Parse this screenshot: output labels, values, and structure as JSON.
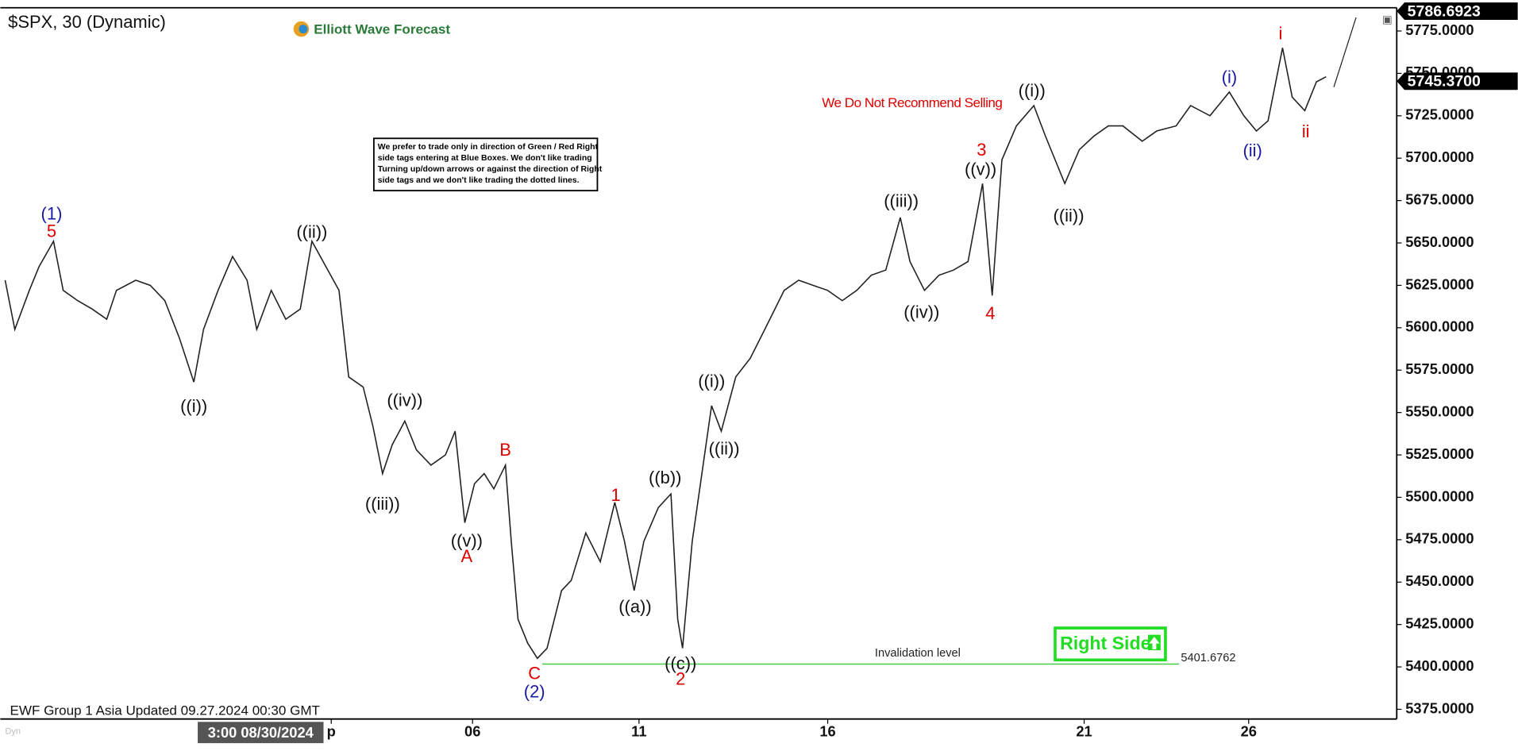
{
  "chart_data": {
    "type": "line",
    "title": "$SPX, 30 (Dynamic)",
    "brand": "Elliott Wave Forecast",
    "color": "#222222",
    "x": [
      0.5,
      1.5,
      3,
      4,
      5.5,
      6.5,
      8,
      9.5,
      11,
      12,
      14,
      15.5,
      17,
      18.5,
      20,
      21,
      22.5,
      24,
      25.5,
      26.5,
      28,
      29.5,
      31,
      32.2,
      35,
      36,
      37.5,
      38.5,
      39.5,
      40.5,
      41.8,
      43,
      44.5,
      46,
      47,
      48,
      49,
      50,
      51,
      52.2,
      52.8,
      53.5,
      54.5,
      55.5,
      56.5,
      58,
      59,
      60.5,
      62,
      63.5,
      64.5,
      65.5,
      66.5,
      68,
      69.3,
      70,
      70.5,
      71.5,
      72.5,
      73.5,
      74.5,
      76,
      77.5,
      79,
      81,
      82.5,
      84,
      85.5,
      87,
      88.5,
      90,
      91.5,
      93,
      94,
      95.5,
      97,
      98.5,
      100,
      101.5,
      102.5,
      103.5,
      105,
      106.8,
      108,
      110,
      111.5,
      113,
      114.5,
      116,
      118,
      119.5,
      121.5,
      123,
      125,
      127,
      128.5,
      129.8,
      131,
      132.5,
      133.5,
      134.8,
      136,
      137
    ],
    "values": [
      5628,
      5599,
      5622,
      5636,
      5651,
      5622,
      5616,
      5611,
      5605,
      5622,
      5628,
      5625,
      5616,
      5594,
      5568,
      5599,
      5622,
      5642,
      5628,
      5599,
      5622,
      5605,
      5611,
      5651,
      5622,
      5571,
      5565,
      5542,
      5514,
      5531,
      5545,
      5528,
      5519,
      5525,
      5539,
      5485,
      5508,
      5514,
      5505,
      5519,
      5474,
      5428,
      5414,
      5405,
      5411,
      5445,
      5451,
      5479,
      5462,
      5497,
      5474,
      5445,
      5474,
      5494,
      5502,
      5428,
      5411,
      5474,
      5514,
      5554,
      5539,
      5571,
      5582,
      5599,
      5622,
      5628,
      5625,
      5622,
      5616,
      5622,
      5631,
      5634,
      5665,
      5639,
      5622,
      5631,
      5634,
      5639,
      5685,
      5619,
      5699,
      5719,
      5731,
      5713,
      5685,
      5705,
      5713,
      5719,
      5719,
      5710,
      5716,
      5719,
      5731,
      5725,
      5739,
      5725,
      5716,
      5722,
      5765,
      5736,
      5728,
      5745,
      5748
    ],
    "xlim": [
      0,
      144.3
    ],
    "xticks": [
      {
        "value": 34.2,
        "label": "p"
      },
      {
        "value": 48.8,
        "label": "06"
      },
      {
        "value": 66.0,
        "label": "11"
      },
      {
        "value": 85.5,
        "label": "16"
      },
      {
        "value": 112.0,
        "label": "21"
      },
      {
        "value": 129.0,
        "label": "26"
      }
    ],
    "ylim": [
      5369.3,
      5788.7
    ],
    "yticks": [
      {
        "value": 5375,
        "label": "5375.0000"
      },
      {
        "value": 5400,
        "label": "5400.0000"
      },
      {
        "value": 5425,
        "label": "5425.0000"
      },
      {
        "value": 5450,
        "label": "5450.0000"
      },
      {
        "value": 5475,
        "label": "5475.0000"
      },
      {
        "value": 5500,
        "label": "5500.0000"
      },
      {
        "value": 5525,
        "label": "5525.0000"
      },
      {
        "value": 5550,
        "label": "5550.0000"
      },
      {
        "value": 5575,
        "label": "5575.0000"
      },
      {
        "value": 5600,
        "label": "5600.0000"
      },
      {
        "value": 5625,
        "label": "5625.0000"
      },
      {
        "value": 5650,
        "label": "5650.0000"
      },
      {
        "value": 5675,
        "label": "5675.0000"
      },
      {
        "value": 5700,
        "label": "5700.0000"
      },
      {
        "value": 5725,
        "label": "5725.0000"
      },
      {
        "value": 5750,
        "label": "5750.0000"
      },
      {
        "value": 5775,
        "label": "5775.0000"
      }
    ],
    "price_tags": [
      5786.6923,
      {
        "value": 5745.37,
        "label": "5745.3700"
      }
    ],
    "cursor_label": "3:00 08/30/2024",
    "reference_line": {
      "value": 5401.6762,
      "text": "Invalidation level",
      "color": "#44cc44"
    },
    "notice": [
      "We prefer to trade only in direction of Green / Red Right",
      "side tags entering at Blue Boxes. We don't like trading",
      "Turning up/down arrows or against the direction of Right",
      "side tags and we don't like trading the dotted lines."
    ],
    "warning": {
      "text": "We Do Not Recommend Selling",
      "color": "#dd0000"
    },
    "badge": {
      "text": "Right Side",
      "color": "#22dd22"
    },
    "footer": "EWF Group 1 Asia Updated 09.27.2024 00:30 GMT",
    "corner": "Dyn",
    "annotations": [
      {
        "text": "(1)",
        "color": "#1a1aa8"
      },
      {
        "text": "5",
        "color": "#dd0000"
      },
      {
        "text": "((i))",
        "color": "#111111"
      },
      {
        "text": "((ii))",
        "color": "#111111"
      },
      {
        "text": "((iii))",
        "color": "#111111"
      },
      {
        "text": "((iv))",
        "color": "#111111"
      },
      {
        "text": "((v))",
        "color": "#111111"
      },
      {
        "text": "A",
        "color": "#dd0000"
      },
      {
        "text": "B",
        "color": "#dd0000"
      },
      {
        "text": "C",
        "color": "#dd0000"
      },
      {
        "text": "(2)",
        "color": "#1a1aa8"
      },
      {
        "text": "1",
        "color": "#dd0000"
      },
      {
        "text": "((a))",
        "color": "#111111"
      },
      {
        "text": "((b))",
        "color": "#111111"
      },
      {
        "text": "((c))",
        "color": "#111111"
      },
      {
        "text": "2",
        "color": "#dd0000"
      },
      {
        "text": "((i))",
        "color": "#111111"
      },
      {
        "text": "((ii))",
        "color": "#111111"
      },
      {
        "text": "((iii))",
        "color": "#111111"
      },
      {
        "text": "((iv))",
        "color": "#111111"
      },
      {
        "text": "((v))",
        "color": "#111111"
      },
      {
        "text": "3",
        "color": "#dd0000"
      },
      {
        "text": "4",
        "color": "#dd0000"
      },
      {
        "text": "((i))",
        "color": "#111111"
      },
      {
        "text": "((ii))",
        "color": "#111111"
      },
      {
        "text": "(i)",
        "color": "#1a1aa8"
      },
      {
        "text": "(ii)",
        "color": "#1a1aa8"
      },
      {
        "text": "i",
        "color": "#dd0000"
      },
      {
        "text": "ii",
        "color": "#dd0000"
      }
    ]
  }
}
